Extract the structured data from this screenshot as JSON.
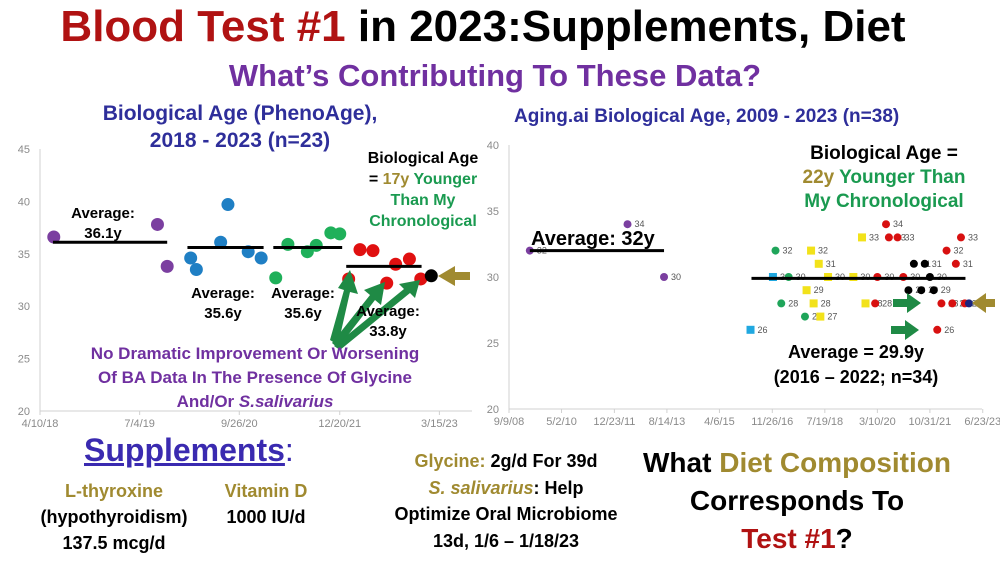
{
  "title": {
    "part1": "Blood Test #1",
    "part2": " in 2023:Supplements, Diet"
  },
  "subtitle": "What’s Contributing To These Data?",
  "colors": {
    "red": "#b01212",
    "purple": "#7030a0",
    "navy": "#2e2e9a",
    "gold": "#a08a30",
    "green": "#1a9a50"
  },
  "left_annotations": {
    "bio_line1": "Biological Age",
    "bio_eq": "= ",
    "bio_years": "17y",
    "bio_younger": " Younger",
    "bio_line3": "Than My",
    "bio_line4": "Chronological",
    "avg1_label": "Average:",
    "avg1_value": "36.1y",
    "avg2_label": "Average:",
    "avg2_value": "35.6y",
    "avg3_label": "Average:",
    "avg3_value": "35.6y",
    "avg4_label": "Average:",
    "avg4_value": "33.8y",
    "note_line1": "No Dramatic Improvement Or Worsening",
    "note_line2": "Of BA Data In The Presence Of Glycine",
    "note_line3a": "And/Or ",
    "note_line3b": "S.salivarius"
  },
  "right_annotations": {
    "bio_line1": "Biological Age =",
    "bio_years": "22y",
    "bio_younger": " Younger Than",
    "bio_line3": "My Chronological",
    "avg_left": "Average: 32y",
    "avg_right1": "Average = 29.9y",
    "avg_right2": "(2016 – 2022; n=34)"
  },
  "bottom": {
    "supplements": "Supplements",
    "colon": ":",
    "lthyroxine": "L-thyroxine",
    "hypo": "(hypothyroidism)",
    "lthy_dose": "137.5 mcg/d",
    "vitd": "Vitamin D",
    "vitd_dose": "1000 IU/d",
    "glycine": "Glycine:",
    "glycine_dose": " 2g/d For 39d",
    "ssal": "S. salivarius",
    "ssal_rest": ": Help",
    "ssal_line2": "Optimize Oral Microbiome",
    "ssal_line3": "13d, 1/6 – 1/18/23",
    "q_what": "What ",
    "q_diet": "Diet Composition",
    "q_line2": "Corresponds To",
    "q_test": "Test #1",
    "q_mark": "?"
  },
  "chart_data": [
    {
      "type": "scatter",
      "title": "Biological Age (PhenoAge),",
      "title_line2": "2018 - 2023 (n=23)",
      "x_unit": "decimal year",
      "ylim": [
        20,
        45
      ],
      "yticks": [
        "20",
        "25",
        "30",
        "35",
        "40",
        "45"
      ],
      "xticks": [
        {
          "x": 2018.27,
          "label": "4/10/18"
        },
        {
          "x": 2019.5,
          "label": "7/4/19"
        },
        {
          "x": 2020.73,
          "label": "9/26/20"
        },
        {
          "x": 2021.97,
          "label": "12/20/21"
        },
        {
          "x": 2023.2,
          "label": "3/15/23"
        }
      ],
      "xlim": [
        2018.27,
        2023.8
      ],
      "series": [
        {
          "name": "period1",
          "color": "#7b3fa0",
          "shape": "circle",
          "points": [
            [
              2018.44,
              36.6
            ],
            [
              2019.72,
              37.8
            ],
            [
              2019.84,
              33.8
            ]
          ]
        },
        {
          "name": "period2",
          "color": "#1f7fc4",
          "shape": "circle",
          "points": [
            [
              2020.13,
              34.6
            ],
            [
              2020.2,
              33.5
            ],
            [
              2020.5,
              36.1
            ],
            [
              2020.59,
              39.7
            ],
            [
              2020.84,
              35.2
            ],
            [
              2021.0,
              34.6
            ]
          ]
        },
        {
          "name": "period3",
          "color": "#1fb05a",
          "shape": "circle",
          "points": [
            [
              2021.18,
              32.7
            ],
            [
              2021.33,
              35.9
            ],
            [
              2021.57,
              35.2
            ],
            [
              2021.68,
              35.8
            ],
            [
              2021.86,
              37.0
            ],
            [
              2021.97,
              36.9
            ]
          ]
        },
        {
          "name": "period4",
          "color": "#e01010",
          "shape": "circle",
          "points": [
            [
              2022.08,
              32.6
            ],
            [
              2022.22,
              35.4
            ],
            [
              2022.38,
              35.3
            ],
            [
              2022.55,
              32.2
            ],
            [
              2022.66,
              34.0
            ],
            [
              2022.83,
              34.5
            ],
            [
              2022.97,
              32.6
            ]
          ]
        },
        {
          "name": "test1",
          "color": "#000000",
          "shape": "circle",
          "points": [
            [
              2023.1,
              32.9
            ]
          ]
        }
      ],
      "averages": [
        {
          "value": 36.1,
          "from": 2018.43,
          "to": 2019.84
        },
        {
          "value": 35.6,
          "from": 2020.09,
          "to": 2021.03
        },
        {
          "value": 35.6,
          "from": 2021.15,
          "to": 2022.0
        },
        {
          "value": 33.8,
          "from": 2022.05,
          "to": 2022.98
        }
      ]
    },
    {
      "type": "scatter",
      "title": "Aging.ai Biological Age, 2009 - 2023 (n=38)",
      "x_unit": "decimal year",
      "ylim": [
        20,
        40
      ],
      "yticks": [
        "20",
        "25",
        "30",
        "35",
        "40"
      ],
      "xticks": [
        {
          "x": 2008.69,
          "label": "9/9/08"
        },
        {
          "x": 2010.33,
          "label": "5/2/10"
        },
        {
          "x": 2011.98,
          "label": "12/23/11"
        },
        {
          "x": 2013.62,
          "label": "8/14/13"
        },
        {
          "x": 2015.26,
          "label": "4/6/15"
        },
        {
          "x": 2016.91,
          "label": "11/26/16"
        },
        {
          "x": 2018.55,
          "label": "7/19/18"
        },
        {
          "x": 2020.19,
          "label": "3/10/20"
        },
        {
          "x": 2021.83,
          "label": "10/31/21"
        },
        {
          "x": 2023.48,
          "label": "6/23/23"
        }
      ],
      "xlim": [
        2008.69,
        2023.8
      ],
      "series": [
        {
          "name": "early",
          "color": "#7b3fa0",
          "shape": "circle",
          "points": [
            [
              2009.34,
              32
            ],
            [
              2012.39,
              34
            ],
            [
              2013.53,
              30
            ]
          ]
        },
        {
          "name": "cyan",
          "color": "#20a8e0",
          "shape": "square",
          "points": [
            [
              2016.23,
              26
            ],
            [
              2016.93,
              30
            ]
          ]
        },
        {
          "name": "green",
          "color": "#1fa55a",
          "shape": "circle",
          "points": [
            [
              2017.01,
              32
            ],
            [
              2017.19,
              28
            ],
            [
              2017.42,
              30
            ],
            [
              2017.93,
              27
            ]
          ]
        },
        {
          "name": "yellow",
          "color": "#f2e21a",
          "shape": "square",
          "points": [
            [
              2017.98,
              29
            ],
            [
              2018.12,
              32
            ],
            [
              2018.2,
              28
            ],
            [
              2018.36,
              31
            ],
            [
              2018.41,
              27
            ],
            [
              2018.65,
              30
            ],
            [
              2019.44,
              30
            ],
            [
              2019.71,
              33
            ],
            [
              2019.82,
              28
            ]
          ]
        },
        {
          "name": "red",
          "color": "#d81010",
          "shape": "circle",
          "points": [
            [
              2020.12,
              28
            ],
            [
              2020.19,
              30
            ],
            [
              2020.46,
              34
            ],
            [
              2020.55,
              33
            ],
            [
              2020.82,
              33
            ],
            [
              2021.0,
              30
            ],
            [
              2022.06,
              26
            ],
            [
              2022.19,
              28
            ],
            [
              2022.35,
              32
            ],
            [
              2022.53,
              28
            ],
            [
              2022.64,
              31
            ],
            [
              2022.8,
              33
            ],
            [
              2022.92,
              28
            ]
          ]
        },
        {
          "name": "black",
          "color": "#000000",
          "shape": "circle",
          "points": [
            [
              2021.16,
              29
            ],
            [
              2021.33,
              31
            ],
            [
              2021.56,
              29
            ],
            [
              2021.67,
              31
            ],
            [
              2021.83,
              30
            ],
            [
              2021.95,
              29
            ]
          ]
        },
        {
          "name": "test1",
          "color": "#1a237e",
          "shape": "circle",
          "points": [
            [
              2023.05,
              28
            ]
          ]
        }
      ],
      "averages": [
        {
          "value": 32,
          "from": 2009.34,
          "to": 2013.53
        },
        {
          "value": 29.9,
          "from": 2016.26,
          "to": 2022.94
        }
      ]
    }
  ]
}
